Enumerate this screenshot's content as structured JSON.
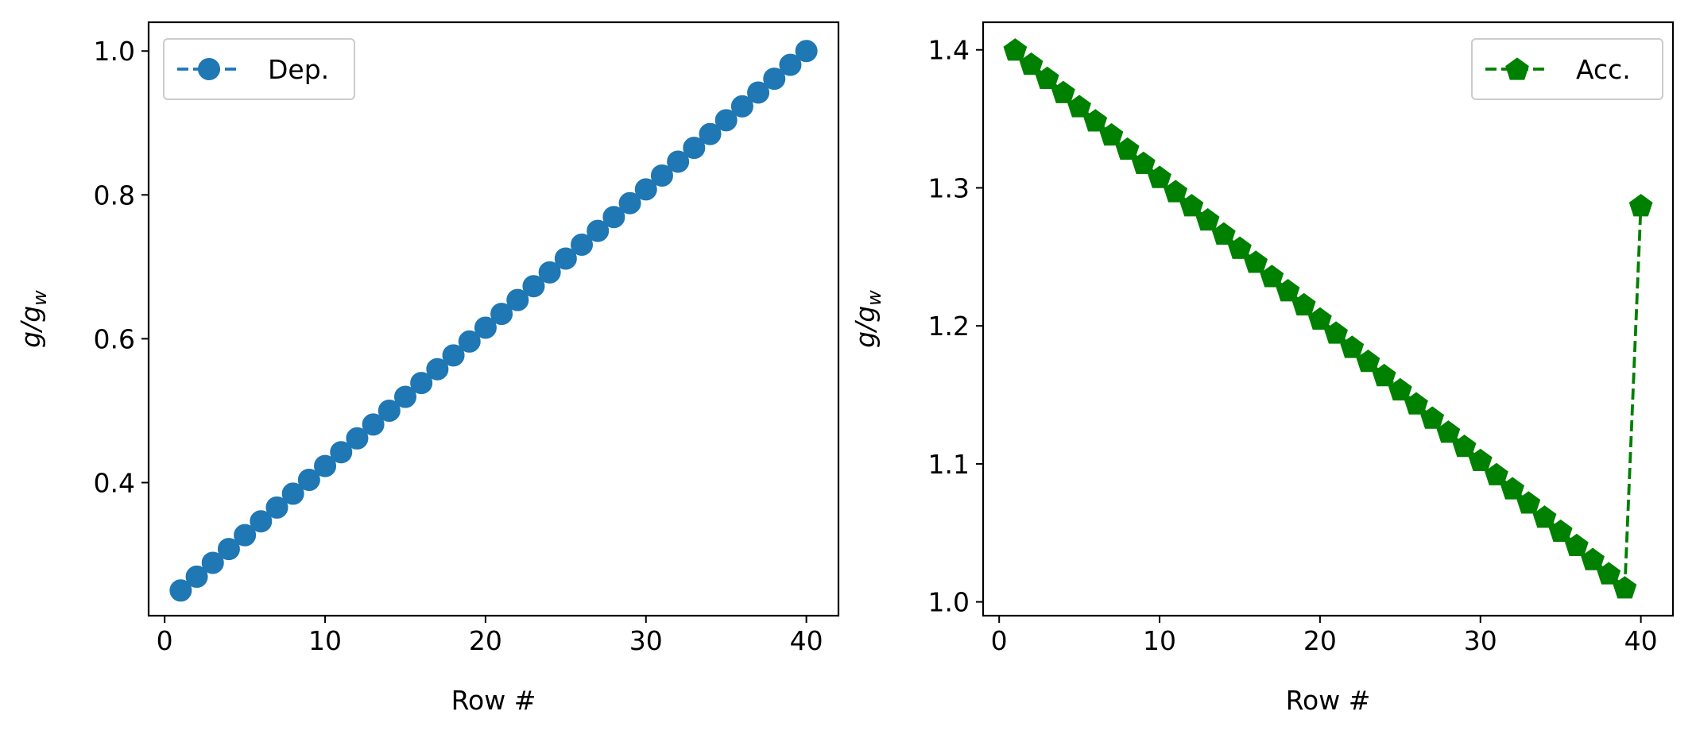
{
  "chart_data": [
    {
      "type": "line",
      "xlabel": "Row #",
      "ylabel_main": "g/g",
      "ylabel_sub": "w",
      "xlim": [
        -1,
        42
      ],
      "ylim": [
        0.215,
        1.04
      ],
      "xticks": [
        0,
        10,
        20,
        30,
        40
      ],
      "yticks": [
        0.4,
        0.6,
        0.8,
        1.0
      ],
      "yticklabels": [
        "0.4",
        "0.6",
        "0.8",
        "1.0"
      ],
      "legend": {
        "position": "upper left",
        "label": "Dep."
      },
      "series": [
        {
          "name": "Dep.",
          "color": "#1f77b4",
          "marker": "circle",
          "linestyle": "dashed",
          "x": [
            1,
            2,
            3,
            4,
            5,
            6,
            7,
            8,
            9,
            10,
            11,
            12,
            13,
            14,
            15,
            16,
            17,
            18,
            19,
            20,
            21,
            22,
            23,
            24,
            25,
            26,
            27,
            28,
            29,
            30,
            31,
            32,
            33,
            34,
            35,
            36,
            37,
            38,
            39,
            40
          ],
          "y": [
            0.25,
            0.2692,
            0.2885,
            0.3077,
            0.3269,
            0.3462,
            0.3654,
            0.3846,
            0.4038,
            0.4231,
            0.4423,
            0.4615,
            0.4808,
            0.5,
            0.5192,
            0.5385,
            0.5577,
            0.5769,
            0.5962,
            0.6154,
            0.6346,
            0.6538,
            0.6731,
            0.6923,
            0.7115,
            0.7308,
            0.75,
            0.7692,
            0.7885,
            0.8077,
            0.8269,
            0.8462,
            0.8654,
            0.8846,
            0.9038,
            0.9231,
            0.9423,
            0.9615,
            0.9808,
            1.0
          ]
        }
      ]
    },
    {
      "type": "line",
      "xlabel": "Row #",
      "ylabel_main": "g/g",
      "ylabel_sub": "w",
      "xlim": [
        -1,
        42
      ],
      "ylim": [
        0.99,
        1.42
      ],
      "xticks": [
        0,
        10,
        20,
        30,
        40
      ],
      "yticks": [
        1.0,
        1.1,
        1.2,
        1.3,
        1.4
      ],
      "yticklabels": [
        "1.0",
        "1.1",
        "1.2",
        "1.3",
        "1.4"
      ],
      "legend": {
        "position": "upper right",
        "label": "Acc."
      },
      "series": [
        {
          "name": "Acc.",
          "color": "#008000",
          "marker": "pentagon",
          "linestyle": "dashed",
          "x": [
            1,
            2,
            3,
            4,
            5,
            6,
            7,
            8,
            9,
            10,
            11,
            12,
            13,
            14,
            15,
            16,
            17,
            18,
            19,
            20,
            21,
            22,
            23,
            24,
            25,
            26,
            27,
            28,
            29,
            30,
            31,
            32,
            33,
            34,
            35,
            36,
            37,
            38,
            39,
            40
          ],
          "y": [
            1.4,
            1.3897,
            1.3795,
            1.3692,
            1.359,
            1.3487,
            1.3385,
            1.3282,
            1.3179,
            1.3077,
            1.2974,
            1.2872,
            1.2769,
            1.2667,
            1.2564,
            1.2462,
            1.2359,
            1.2256,
            1.2154,
            1.2051,
            1.1949,
            1.1846,
            1.1744,
            1.1641,
            1.1538,
            1.1436,
            1.1333,
            1.1231,
            1.1128,
            1.1026,
            1.0923,
            1.0821,
            1.0718,
            1.0615,
            1.0513,
            1.041,
            1.0308,
            1.0205,
            1.0103,
            1.2872
          ]
        }
      ]
    }
  ]
}
